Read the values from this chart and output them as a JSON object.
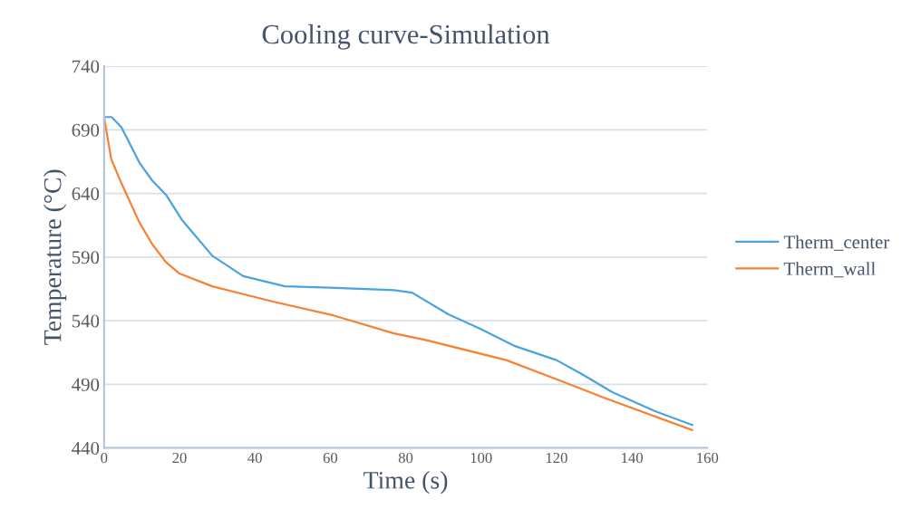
{
  "chart_data": {
    "type": "line",
    "title": "Cooling curve-Simulation",
    "xlabel": "Time (s)",
    "ylabel": "Temperature (°C)",
    "xlim": [
      0,
      160
    ],
    "xticks": [
      0,
      20,
      40,
      60,
      80,
      100,
      120,
      140,
      160
    ],
    "ylim": [
      440,
      740
    ],
    "yticks": [
      440,
      490,
      540,
      590,
      640,
      690,
      740
    ],
    "grid": "y",
    "legend": "right",
    "marker": "none",
    "line_style": "solid",
    "series": [
      {
        "name": "Therm_center",
        "color": "#4aa3df",
        "x": [
          0,
          2,
          4.6,
          9.4,
          12.8,
          16.4,
          20.7,
          28.7,
          36.9,
          48,
          60,
          76.9,
          81.7,
          91.3,
          99.5,
          109,
          120,
          126.7,
          134.7,
          146,
          156
        ],
        "values": [
          700,
          700,
          692,
          664,
          650,
          639,
          619,
          591,
          575,
          567,
          566,
          564,
          562,
          545,
          534,
          520,
          509,
          498,
          484,
          469,
          458
        ]
      },
      {
        "name": "Therm_wall",
        "color": "#f58233",
        "x": [
          0,
          1.9,
          4.6,
          9.4,
          12.8,
          16.4,
          20,
          28.7,
          44.8,
          61,
          76.9,
          85,
          106.7,
          120,
          133,
          156
        ],
        "values": [
          700,
          667,
          648,
          617,
          600,
          586,
          577,
          567,
          555,
          544,
          530,
          525,
          509,
          494,
          479,
          454
        ]
      }
    ]
  }
}
